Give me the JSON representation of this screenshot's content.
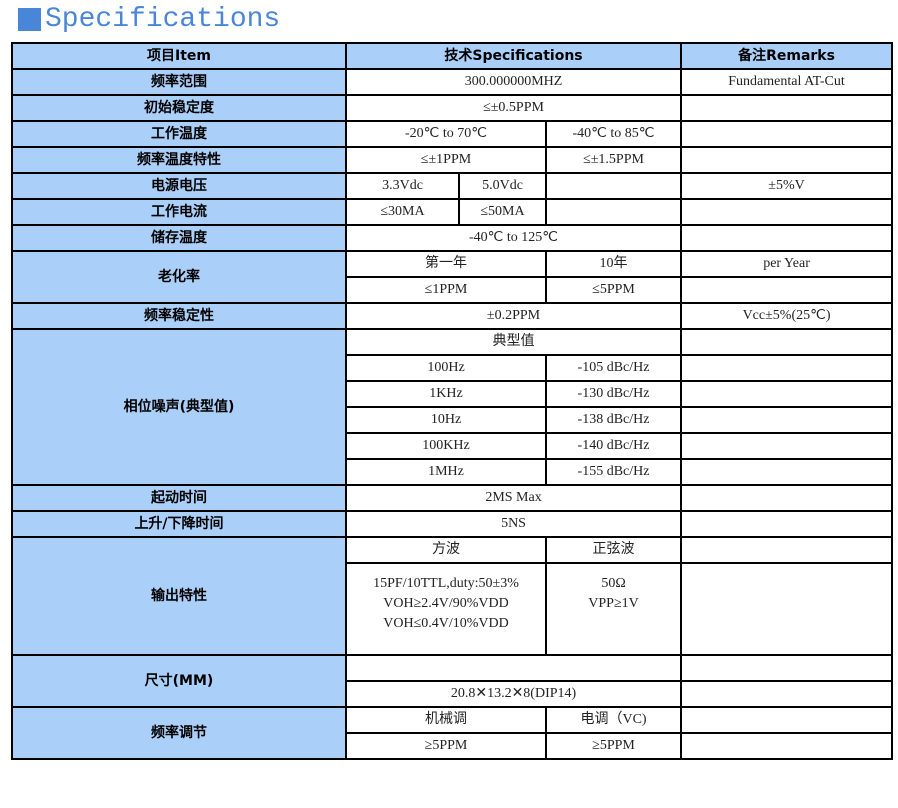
{
  "title": "Specifications",
  "accent": "#4a86d8",
  "header_bg": "#aacff8",
  "header": {
    "item": "项目Item",
    "spec": "技术Specifications",
    "remarks": "备注Remarks"
  },
  "rows": {
    "freq_range": {
      "label": "频率范围",
      "spec": "300.000000MHZ",
      "remarks": "Fundamental AT-Cut"
    },
    "initial_stability": {
      "label": "初始稳定度",
      "spec": "≤±0.5PPM"
    },
    "operating_temp": {
      "label": "工作温度",
      "a": "-20℃ to 70℃",
      "b": "-40℃ to 85℃"
    },
    "freq_temp": {
      "label": "频率温度特性",
      "a": "≤±1PPM",
      "b": "≤±1.5PPM"
    },
    "voltage": {
      "label": "电源电压",
      "a": "3.3Vdc",
      "b": "5.0Vdc",
      "remarks": "±5%V"
    },
    "current": {
      "label": "工作电流",
      "a": "≤30MA",
      "b": "≤50MA"
    },
    "storage_temp": {
      "label": "储存温度",
      "spec": "-40℃ to 125℃"
    },
    "aging": {
      "label": "老化率",
      "h1": "第一年",
      "h2": "10年",
      "remarks": "per Year",
      "v1": "≤1PPM",
      "v2": "≤5PPM"
    },
    "freq_stability": {
      "label": "频率稳定性",
      "spec": "±0.2PPM",
      "remarks": "Vcc±5%(25℃)"
    },
    "phase_noise": {
      "label": "相位噪声(典型值)",
      "typical": "典型值",
      "items": [
        {
          "f": "100Hz",
          "v": "-105 dBc/Hz"
        },
        {
          "f": "1KHz",
          "v": "-130 dBc/Hz"
        },
        {
          "f": "10Hz",
          "v": "-138 dBc/Hz"
        },
        {
          "f": "100KHz",
          "v": "-140 dBc/Hz"
        },
        {
          "f": "1MHz",
          "v": "-155 dBc/Hz"
        }
      ]
    },
    "startup": {
      "label": "起动时间",
      "spec": "2MS Max"
    },
    "rise_fall": {
      "label": "上升/下降时间",
      "spec": "5NS"
    },
    "output": {
      "label": "输出特性",
      "square": "方波",
      "sine": "正弦波",
      "square_lines": [
        "15PF/10TTL,duty:50±3%",
        "VOH≥2.4V/90%VDD",
        "VOH≤0.4V/10%VDD"
      ],
      "sine_lines": [
        "50Ω",
        "VPP≥1V"
      ]
    },
    "size": {
      "label": "尺寸(MM)",
      "spec": "20.8✕13.2✕8(DIP14)"
    },
    "freq_adjust": {
      "label": "频率调节",
      "h1": "机械调",
      "h2": "电调（VC)",
      "v1": "≥5PPM",
      "v2": "≥5PPM"
    }
  }
}
